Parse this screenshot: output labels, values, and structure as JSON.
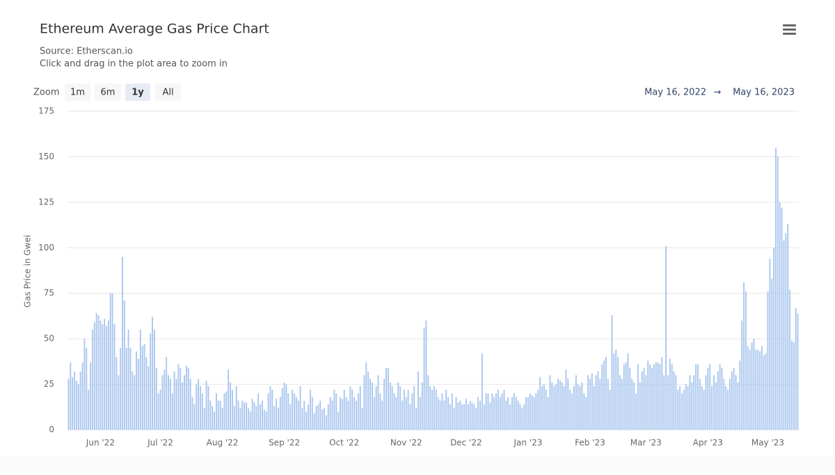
{
  "chart_data": {
    "type": "bar",
    "title": "Ethereum Average Gas Price Chart",
    "subtitle": "Source: Etherscan.io",
    "annotation": "Click and drag in the plot area to zoom in",
    "y_label": "Gas Price in Gwei",
    "color": "#a9c6ee",
    "ylim": [
      0,
      175
    ],
    "yticks": [
      0,
      25,
      50,
      75,
      100,
      125,
      150,
      175
    ],
    "grid": true,
    "categories": [
      null,
      null,
      null,
      null,
      null,
      null,
      null,
      null,
      null,
      null,
      null,
      null,
      null,
      null,
      null,
      null,
      "Jun '22",
      null,
      null,
      null,
      null,
      null,
      null,
      null,
      null,
      null,
      null,
      null,
      null,
      null,
      null,
      null,
      null,
      null,
      null,
      null,
      null,
      null,
      null,
      null,
      null,
      null,
      null,
      null,
      null,
      null,
      "Jul '22",
      null,
      null,
      null,
      null,
      null,
      null,
      null,
      null,
      null,
      null,
      null,
      null,
      null,
      null,
      null,
      null,
      null,
      null,
      null,
      null,
      null,
      null,
      null,
      null,
      null,
      null,
      null,
      null,
      null,
      null,
      "Aug '22",
      null,
      null,
      null,
      null,
      null,
      null,
      null,
      null,
      null,
      null,
      null,
      null,
      null,
      null,
      null,
      null,
      null,
      null,
      null,
      null,
      null,
      null,
      null,
      null,
      null,
      null,
      null,
      null,
      null,
      null,
      "Sep '22",
      null,
      null,
      null,
      null,
      null,
      null,
      null,
      null,
      null,
      null,
      null,
      null,
      null,
      null,
      null,
      null,
      null,
      null,
      null,
      null,
      null,
      null,
      null,
      null,
      null,
      null,
      null,
      null,
      null,
      "Oct '22",
      null,
      null,
      null,
      null,
      null,
      null,
      null,
      null,
      null,
      null,
      null,
      null,
      null,
      null,
      null,
      null,
      null,
      null,
      null,
      null,
      null,
      null,
      null,
      null,
      null,
      null,
      null,
      null,
      null,
      null,
      "Nov '22",
      null,
      null,
      null,
      null,
      null,
      null,
      null,
      null,
      null,
      null,
      null,
      null,
      null,
      null,
      null,
      null,
      null,
      null,
      null,
      null,
      null,
      null,
      null,
      null,
      null,
      null,
      null,
      null,
      null,
      "Dec '22",
      null,
      null,
      null,
      null,
      null,
      null,
      null,
      null,
      null,
      null,
      null,
      null,
      null,
      null,
      null,
      null,
      null,
      null,
      null,
      null,
      null,
      null,
      null,
      null,
      null,
      null,
      null,
      null,
      null,
      null,
      "Jan '23",
      null,
      null,
      null,
      null,
      null,
      null,
      null,
      null,
      null,
      null,
      null,
      null,
      null,
      null,
      null,
      null,
      null,
      null,
      null,
      null,
      null,
      null,
      null,
      null,
      null,
      null,
      null,
      null,
      null,
      null,
      "Feb '23",
      null,
      null,
      null,
      null,
      null,
      null,
      null,
      null,
      null,
      null,
      null,
      null,
      null,
      null,
      null,
      null,
      null,
      null,
      null,
      null,
      null,
      null,
      null,
      null,
      null,
      null,
      null,
      "Mar '23",
      null,
      null,
      null,
      null,
      null,
      null,
      null,
      null,
      null,
      null,
      null,
      null,
      null,
      null,
      null,
      null,
      null,
      null,
      null,
      null,
      null,
      null,
      null,
      null,
      null,
      null,
      null,
      null,
      null,
      null,
      "Apr '23",
      null,
      null,
      null,
      null,
      null,
      null,
      null,
      null,
      null,
      null,
      null,
      null,
      null,
      null,
      null,
      null,
      null,
      null,
      null,
      null,
      null,
      null,
      null,
      null,
      null,
      null,
      null,
      null,
      null,
      "May '23",
      null,
      null,
      null,
      null,
      null,
      null,
      null,
      null,
      null,
      null,
      null,
      null,
      null,
      null,
      null
    ],
    "values": [
      28,
      37,
      29,
      32,
      27,
      25,
      32,
      37,
      50,
      45,
      22,
      37,
      55,
      59,
      64,
      63,
      60,
      58,
      61,
      57,
      60,
      75,
      75,
      58,
      40,
      30,
      45,
      95,
      71,
      45,
      55,
      45,
      32,
      30,
      43,
      39,
      55,
      46,
      47,
      40,
      35,
      53,
      62,
      55,
      34,
      20,
      22,
      30,
      33,
      40,
      30,
      28,
      20,
      32,
      28,
      36,
      34,
      26,
      30,
      35,
      34,
      28,
      18,
      14,
      25,
      28,
      24,
      20,
      12,
      27,
      24,
      16,
      13,
      10,
      20,
      16,
      16,
      12,
      20,
      21,
      33,
      26,
      22,
      13,
      24,
      16,
      12,
      16,
      15,
      15,
      12,
      10,
      17,
      15,
      13,
      20,
      14,
      16,
      11,
      10,
      20,
      24,
      22,
      13,
      17,
      12,
      18,
      23,
      26,
      25,
      20,
      14,
      22,
      20,
      18,
      16,
      24,
      12,
      16,
      10,
      14,
      22,
      18,
      9,
      13,
      14,
      16,
      11,
      12,
      8,
      14,
      18,
      16,
      22,
      20,
      10,
      18,
      17,
      22,
      18,
      16,
      24,
      22,
      18,
      16,
      20,
      24,
      12,
      30,
      37,
      32,
      28,
      26,
      18,
      24,
      30,
      20,
      16,
      28,
      34,
      34,
      26,
      24,
      20,
      18,
      26,
      24,
      16,
      22,
      18,
      22,
      14,
      20,
      24,
      12,
      32,
      18,
      26,
      56,
      60,
      30,
      24,
      22,
      24,
      22,
      18,
      16,
      20,
      16,
      22,
      18,
      14,
      20,
      12,
      18,
      15,
      16,
      14,
      14,
      17,
      14,
      16,
      15,
      14,
      12,
      18,
      16,
      42,
      14,
      20,
      20,
      15,
      20,
      18,
      20,
      22,
      18,
      20,
      22,
      16,
      18,
      14,
      18,
      20,
      18,
      16,
      14,
      12,
      14,
      18,
      18,
      20,
      19,
      18,
      20,
      22,
      29,
      24,
      25,
      22,
      18,
      30,
      26,
      24,
      25,
      28,
      27,
      26,
      24,
      33,
      28,
      22,
      20,
      24,
      30,
      25,
      24,
      26,
      20,
      18,
      30,
      28,
      31,
      24,
      30,
      32,
      28,
      36,
      38,
      40,
      28,
      22,
      63,
      42,
      44,
      40,
      30,
      28,
      36,
      37,
      42,
      34,
      28,
      26,
      20,
      36,
      26,
      32,
      34,
      30,
      38,
      36,
      34,
      36,
      37,
      37,
      36,
      40,
      30,
      101,
      30,
      39,
      36,
      32,
      30,
      22,
      24,
      20,
      22,
      25,
      24,
      30,
      26,
      30,
      36,
      36,
      28,
      24,
      22,
      30,
      34,
      36,
      24,
      30,
      26,
      32,
      36,
      34,
      28,
      24,
      22,
      28,
      32,
      34,
      30,
      26,
      38,
      60,
      81,
      76,
      46,
      44,
      48,
      50,
      44,
      44,
      43,
      46,
      41,
      42,
      76,
      94,
      83,
      100,
      155,
      150,
      125,
      122,
      104,
      108,
      113,
      77,
      49,
      48,
      67,
      64
    ]
  },
  "zoom": {
    "label": "Zoom",
    "buttons": [
      "1m",
      "6m",
      "1y",
      "All"
    ],
    "selected": 2
  },
  "range": {
    "from": "May 16, 2022",
    "separator": "→",
    "to": "May 16, 2023"
  }
}
